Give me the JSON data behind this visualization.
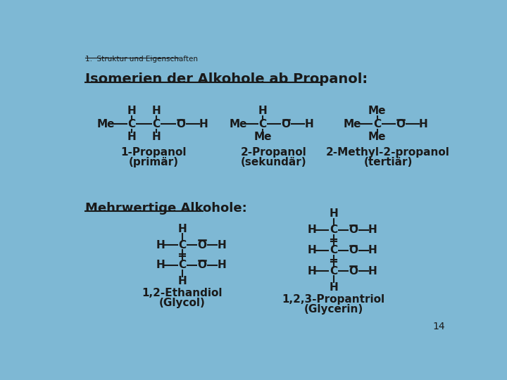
{
  "background_color": "#7EB8D4",
  "text_color": "#1a1a1a",
  "header_text": "1.  Struktur und Eigenschaften",
  "title_text": "Isomerien der Alkohole ab Propanol:",
  "section2_text": "Mehrwertige Alkohole:",
  "page_number": "14"
}
